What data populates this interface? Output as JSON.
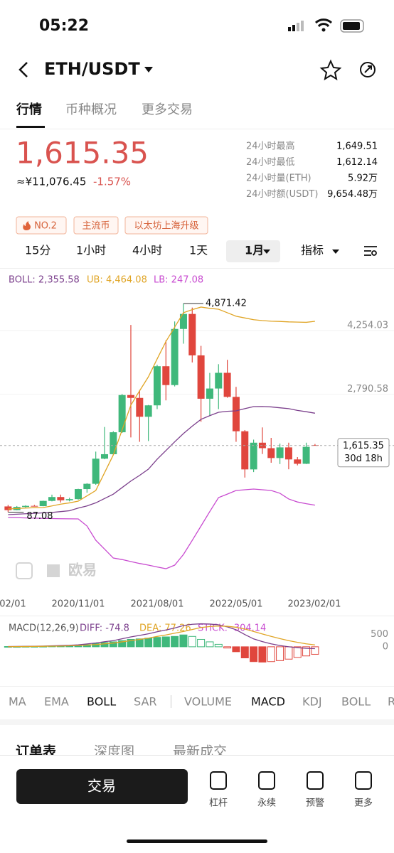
{
  "status": {
    "time": "05:22"
  },
  "header": {
    "pair": "ETH/USDT"
  },
  "tabs": [
    "行情",
    "币种概况",
    "更多交易"
  ],
  "quote": {
    "price": "1,615.35",
    "cny": "≈¥11,076.45",
    "change": "-1.57%"
  },
  "stats": [
    [
      "24小时最高",
      "1,649.51"
    ],
    [
      "24小时最低",
      "1,612.14"
    ],
    [
      "24小时量(ETH)",
      "5.92万"
    ],
    [
      "24小时额(USDT)",
      "9,654.48万"
    ]
  ],
  "tags": [
    "NO.2",
    "主流币",
    "以太坊上海升级"
  ],
  "intervals": [
    "15分",
    "1小时",
    "4小时",
    "1天",
    "1月",
    "指标"
  ],
  "kline": {
    "legend": [
      "BOLL: 2,355.58",
      "UB: 4,464.08",
      "LB: 247.08"
    ],
    "ylim": [
      -1535,
      5637
    ],
    "yticks": [
      {
        "value": 4254.03,
        "label": "4,254.03"
      },
      {
        "value": 2790.58,
        "label": "2,790.58"
      }
    ],
    "current": {
      "value": 1615.35,
      "label": "1,615.35"
    },
    "countdown": "30d 18h",
    "max_label": "4,871.42",
    "min_label": "87.08",
    "watermark": "欧易",
    "xlabels": [
      "02/01",
      "2020/11/01",
      "2021/08/01",
      "2022/05/01",
      "2023/02/01"
    ],
    "candles": [
      {
        "o": 218,
        "h": 253,
        "l": 87.08,
        "c": 133
      },
      {
        "o": 133,
        "h": 227,
        "l": 130,
        "c": 206
      },
      {
        "o": 206,
        "h": 245,
        "l": 187,
        "c": 231
      },
      {
        "o": 231,
        "h": 253,
        "l": 216,
        "c": 225
      },
      {
        "o": 225,
        "h": 350,
        "l": 222,
        "c": 345
      },
      {
        "o": 345,
        "h": 488,
        "l": 334,
        "c": 434
      },
      {
        "o": 434,
        "h": 489,
        "l": 308,
        "c": 359
      },
      {
        "o": 359,
        "h": 417,
        "l": 334,
        "c": 386
      },
      {
        "o": 386,
        "h": 623,
        "l": 374,
        "c": 616
      },
      {
        "o": 616,
        "h": 750,
        "l": 532,
        "c": 737
      },
      {
        "o": 737,
        "h": 1475,
        "l": 715,
        "c": 1313
      },
      {
        "o": 1313,
        "h": 2040,
        "l": 1300,
        "c": 1416
      },
      {
        "o": 1416,
        "h": 1942,
        "l": 1400,
        "c": 1919
      },
      {
        "o": 1919,
        "h": 2797,
        "l": 1904,
        "c": 2772
      },
      {
        "o": 2772,
        "h": 4380,
        "l": 1800,
        "c": 2707
      },
      {
        "o": 2707,
        "h": 2890,
        "l": 1700,
        "c": 2274
      },
      {
        "o": 2274,
        "h": 2545,
        "l": 1718,
        "c": 2536
      },
      {
        "o": 2536,
        "h": 3466,
        "l": 2450,
        "c": 3433
      },
      {
        "o": 3433,
        "h": 4027,
        "l": 2650,
        "c": 3001
      },
      {
        "o": 3001,
        "h": 4460,
        "l": 2970,
        "c": 4288
      },
      {
        "o": 4288,
        "h": 4871.42,
        "l": 3950,
        "c": 4632
      },
      {
        "o": 4632,
        "h": 4778,
        "l": 3520,
        "c": 3682
      },
      {
        "o": 3682,
        "h": 3900,
        "l": 2160,
        "c": 2688
      },
      {
        "o": 2688,
        "h": 3280,
        "l": 2300,
        "c": 2922
      },
      {
        "o": 2922,
        "h": 3480,
        "l": 2450,
        "c": 3282
      },
      {
        "o": 3282,
        "h": 3580,
        "l": 2710,
        "c": 2730
      },
      {
        "o": 2730,
        "h": 2960,
        "l": 1700,
        "c": 1942
      },
      {
        "o": 1942,
        "h": 1970,
        "l": 880,
        "c": 1067
      },
      {
        "o": 1067,
        "h": 1750,
        "l": 1006,
        "c": 1680
      },
      {
        "o": 1680,
        "h": 2030,
        "l": 1420,
        "c": 1554
      },
      {
        "o": 1554,
        "h": 1790,
        "l": 1220,
        "c": 1328
      },
      {
        "o": 1328,
        "h": 1660,
        "l": 1190,
        "c": 1572
      },
      {
        "o": 1572,
        "h": 1680,
        "l": 1070,
        "c": 1296
      },
      {
        "o": 1296,
        "h": 1350,
        "l": 1160,
        "c": 1196
      },
      {
        "o": 1196,
        "h": 1680,
        "l": 1190,
        "c": 1585
      },
      {
        "o": 1625,
        "h": 1650,
        "l": 1612,
        "c": 1615
      }
    ],
    "bands": [
      {
        "name": "mid",
        "color": "#7b3f8c",
        "values": [
          30,
          40,
          50,
          60,
          70,
          80,
          100,
          120,
          180,
          230,
          300,
          400,
          500,
          650,
          800,
          930,
          1073,
          1300,
          1500,
          1700,
          1890,
          2060,
          2215,
          2300,
          2377,
          2400,
          2410,
          2460,
          2508,
          2510,
          2500,
          2480,
          2460,
          2420,
          2390,
          2355.58
        ]
      },
      {
        "name": "upper",
        "color": "#e0a526",
        "values": [
          160,
          170,
          180,
          190,
          193,
          230,
          270,
          300,
          340,
          460,
          584,
          990,
          1400,
          1970,
          2540,
          2870,
          3190,
          3600,
          4000,
          4330,
          4660,
          4730,
          4790,
          4760,
          4740,
          4660,
          4580,
          4540,
          4500,
          4480,
          4465,
          4460,
          4450,
          4445,
          4440,
          4464.08
        ]
      },
      {
        "name": "lower",
        "color": "#c84bd0",
        "values": [
          -35,
          -40,
          -45,
          -50,
          -55,
          -60,
          -64,
          -66,
          -68,
          -231,
          -557,
          -760,
          -965,
          -1000,
          -1046,
          -1090,
          -1128,
          -1170,
          -1210,
          -1128,
          -883,
          -560,
          -231,
          100,
          421,
          500,
          584,
          600,
          617,
          600,
          584,
          520,
          389,
          320,
          280,
          247.08
        ]
      }
    ]
  },
  "macd": {
    "legend": [
      "MACD(12,26,9)",
      "DIFF: -74.8",
      "DEA: 77.26",
      "STICK: -304.14"
    ],
    "ylim": [
      -1500,
      1206
    ],
    "yticks": [
      500,
      0
    ],
    "stick": [
      10,
      10,
      15,
      15,
      20,
      30,
      40,
      40,
      60,
      90,
      130,
      170,
      200,
      250,
      300,
      320,
      350,
      380,
      400,
      420,
      480,
      420,
      300,
      200,
      100,
      -50,
      -200,
      -450,
      -600,
      -620,
      -600,
      -560,
      -500,
      -430,
      -370,
      -304.14
    ],
    "lines": [
      {
        "name": "diff",
        "color": "#7b3f8c",
        "values": [
          10,
          13,
          17,
          22,
          30,
          40,
          50,
          60,
          80,
          115,
          155,
          205,
          250,
          325,
          400,
          460,
          525,
          610,
          680,
          760,
          860,
          910,
          930,
          920,
          890,
          805,
          690,
          495,
          320,
          210,
          120,
          50,
          0,
          -35,
          -65,
          -74.8
        ]
      },
      {
        "name": "dea",
        "color": "#e0a526",
        "values": [
          5,
          8,
          10,
          15,
          20,
          25,
          30,
          40,
          50,
          70,
          90,
          120,
          150,
          200,
          250,
          300,
          350,
          420,
          480,
          550,
          620,
          700,
          780,
          820,
          840,
          830,
          790,
          720,
          620,
          520,
          420,
          330,
          250,
          180,
          120,
          77.26
        ]
      }
    ]
  },
  "indicators": [
    "MA",
    "EMA",
    "BOLL",
    "SAR",
    "VOLUME",
    "MACD",
    "KDJ",
    "BOLL",
    "R"
  ],
  "order_tabs": [
    "订单表",
    "深度图",
    "最新成交"
  ],
  "footer": {
    "trade": "交易",
    "icons": [
      "杠杆",
      "永续",
      "预警",
      "更多"
    ]
  }
}
